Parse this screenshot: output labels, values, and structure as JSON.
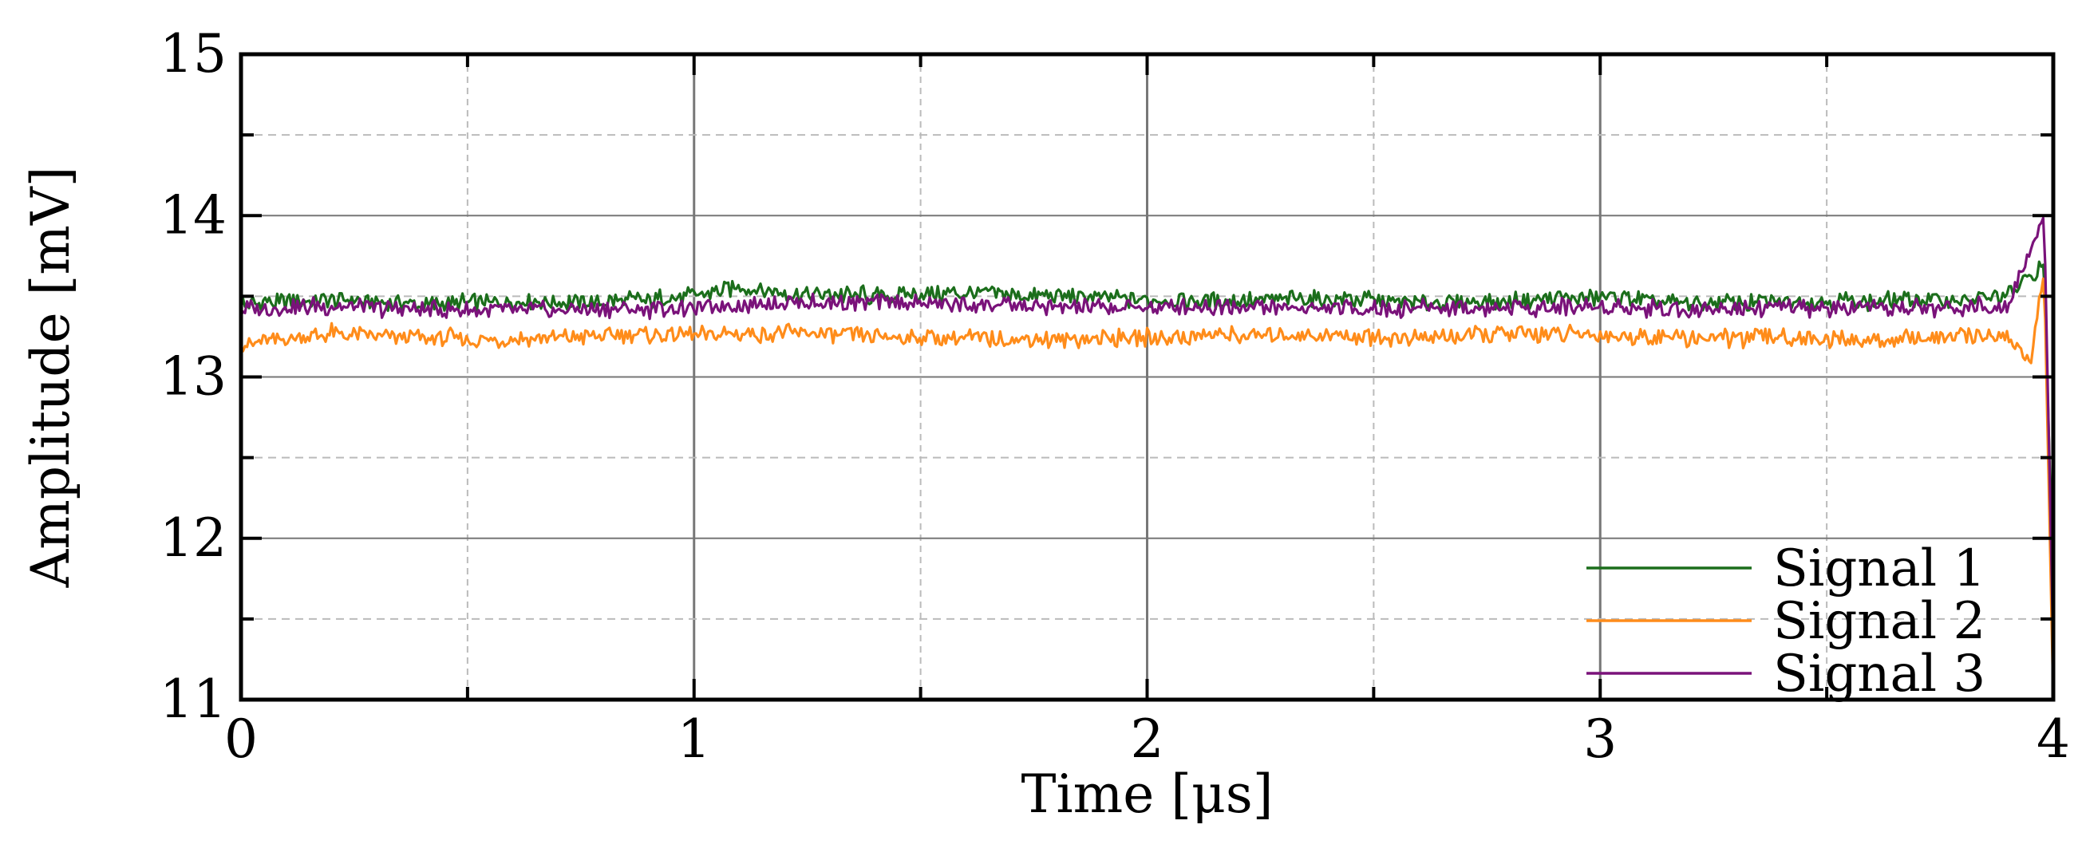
{
  "chart_data": {
    "type": "line",
    "title": "",
    "xlabel": "Time [μs]",
    "ylabel": "Amplitude [mV]",
    "xlim": [
      0,
      4
    ],
    "ylim": [
      11,
      15
    ],
    "x_ticks": [
      "0",
      "1",
      "2",
      "3",
      "4"
    ],
    "y_ticks": [
      "11",
      "12",
      "13",
      "14",
      "15"
    ],
    "grid": true,
    "legend_position": "bottom-right",
    "series": [
      {
        "name": "Signal 1",
        "color": "#1b6e1b",
        "x": [
          0,
          0.2,
          0.4,
          0.6,
          0.8,
          1.0,
          1.1,
          1.2,
          1.4,
          1.6,
          1.8,
          2.0,
          2.2,
          2.4,
          2.6,
          2.8,
          3.0,
          3.2,
          3.4,
          3.6,
          3.8,
          3.9,
          3.98,
          4.0
        ],
        "values": [
          13.45,
          13.48,
          13.45,
          13.47,
          13.46,
          13.5,
          13.56,
          13.52,
          13.5,
          13.52,
          13.5,
          13.48,
          13.47,
          13.49,
          13.46,
          13.47,
          13.5,
          13.45,
          13.47,
          13.47,
          13.48,
          13.5,
          13.7,
          11.6
        ]
      },
      {
        "name": "Signal 2",
        "color": "#ff8c1a",
        "x": [
          0,
          0.2,
          0.4,
          0.6,
          0.8,
          1.0,
          1.2,
          1.4,
          1.6,
          1.8,
          2.0,
          2.2,
          2.4,
          2.6,
          2.8,
          3.0,
          3.2,
          3.4,
          3.6,
          3.8,
          3.9,
          3.95,
          3.98,
          4.0
        ],
        "values": [
          13.2,
          13.27,
          13.24,
          13.23,
          13.26,
          13.26,
          13.27,
          13.25,
          13.24,
          13.23,
          13.24,
          13.26,
          13.26,
          13.24,
          13.27,
          13.26,
          13.24,
          13.25,
          13.22,
          13.25,
          13.25,
          13.1,
          13.65,
          11.0
        ]
      },
      {
        "name": "Signal 3",
        "color": "#7a127a",
        "x": [
          0,
          0.2,
          0.4,
          0.6,
          0.8,
          1.0,
          1.2,
          1.4,
          1.6,
          1.8,
          2.0,
          2.2,
          2.4,
          2.6,
          2.8,
          3.0,
          3.2,
          3.4,
          3.6,
          3.8,
          3.9,
          3.98,
          4.0
        ],
        "values": [
          13.42,
          13.44,
          13.42,
          13.41,
          13.42,
          13.43,
          13.46,
          13.46,
          13.45,
          13.43,
          13.43,
          13.44,
          13.42,
          13.43,
          13.43,
          13.44,
          13.42,
          13.43,
          13.42,
          13.43,
          13.45,
          14.0,
          11.3
        ]
      }
    ]
  }
}
